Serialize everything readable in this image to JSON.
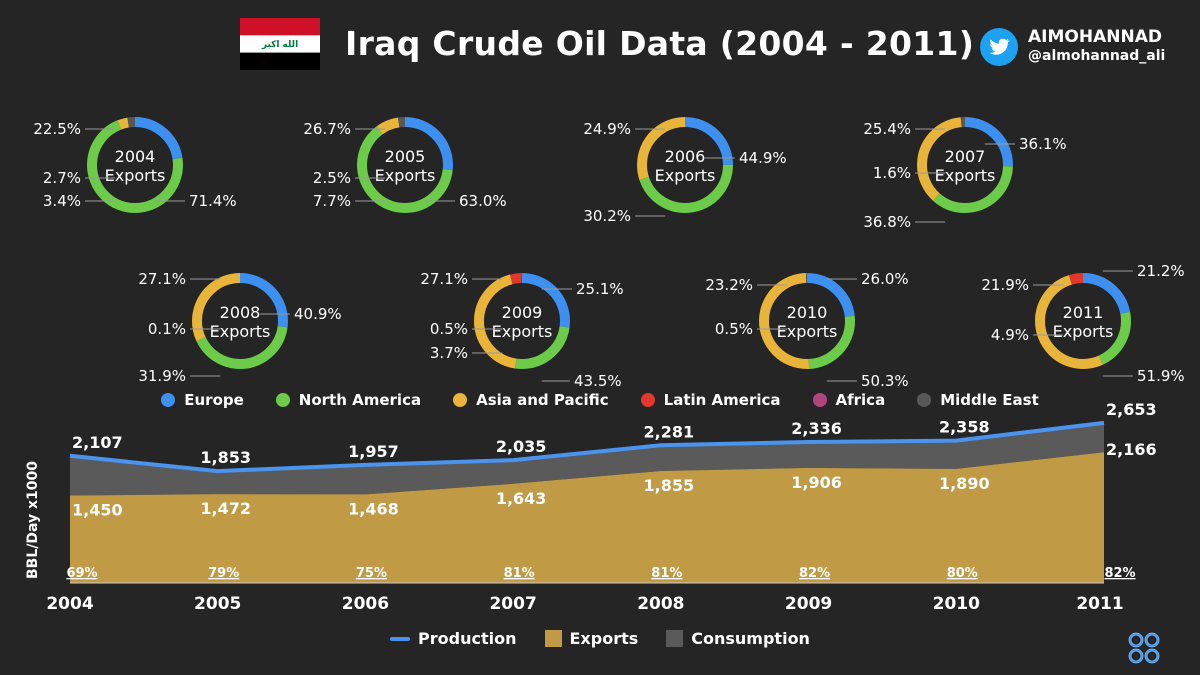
{
  "header": {
    "title": "Iraq Crude Oil Data (2004 - 2011)",
    "flag_script": "الله اكبر",
    "handle_name": "AIMOHANNAD",
    "handle_at": "@almohannad_ali"
  },
  "colors": {
    "Europe": "#3d8ff0",
    "North America": "#6ccb49",
    "Asia and Pacific": "#e9b43a",
    "Latin America": "#e2382b",
    "Africa": "#b0457e",
    "Middle East": "#585858",
    "production": "#4a94f0",
    "exports": "#c09a45",
    "consumption": "#5a5a5a"
  },
  "region_legend": [
    "Europe",
    "North America",
    "Asia and Pacific",
    "Latin America",
    "Africa",
    "Middle East"
  ],
  "chart_data": [
    {
      "type": "donut",
      "title": "Iraq crude oil exports by destination",
      "donuts": [
        {
          "label_year": "2004",
          "label_sub": "Exports",
          "segments": [
            {
              "region": "Europe",
              "value": 22.5
            },
            {
              "region": "North America",
              "value": 71.4
            },
            {
              "region": "Asia and Pacific",
              "value": 3.4
            },
            {
              "region": "Middle East",
              "value": 2.7
            }
          ],
          "labels": [
            "22.5%",
            "71.4%",
            "3.4%",
            "2.7%"
          ]
        },
        {
          "label_year": "2005",
          "label_sub": "Exports",
          "segments": [
            {
              "region": "Europe",
              "value": 26.7
            },
            {
              "region": "North America",
              "value": 63.0
            },
            {
              "region": "Asia and Pacific",
              "value": 7.7
            },
            {
              "region": "Middle East",
              "value": 2.5
            }
          ],
          "labels": [
            "26.7%",
            "63.0%",
            "7.7%",
            "2.5%"
          ]
        },
        {
          "label_year": "2006",
          "label_sub": "Exports",
          "segments": [
            {
              "region": "Europe",
              "value": 24.9
            },
            {
              "region": "North America",
              "value": 44.9
            },
            {
              "region": "Asia and Pacific",
              "value": 30.2
            }
          ],
          "labels": [
            "24.9%",
            "44.9%",
            "30.2%"
          ]
        },
        {
          "label_year": "2007",
          "label_sub": "Exports",
          "segments": [
            {
              "region": "Europe",
              "value": 25.4
            },
            {
              "region": "North America",
              "value": 36.1
            },
            {
              "region": "Asia and Pacific",
              "value": 36.8
            },
            {
              "region": "Middle East",
              "value": 1.6
            }
          ],
          "labels": [
            "25.4%",
            "36.1%",
            "36.8%",
            "1.6%"
          ]
        },
        {
          "label_year": "2008",
          "label_sub": "Exports",
          "segments": [
            {
              "region": "Europe",
              "value": 27.1
            },
            {
              "region": "North America",
              "value": 40.9
            },
            {
              "region": "Asia and Pacific",
              "value": 31.9
            },
            {
              "region": "Latin America",
              "value": 0.1
            }
          ],
          "labels": [
            "27.1%",
            "40.9%",
            "31.9%",
            "0.1%"
          ]
        },
        {
          "label_year": "2009",
          "label_sub": "Exports",
          "segments": [
            {
              "region": "Europe",
              "value": 27.1
            },
            {
              "region": "North America",
              "value": 25.1
            },
            {
              "region": "Asia and Pacific",
              "value": 43.5
            },
            {
              "region": "Latin America",
              "value": 3.7
            },
            {
              "region": "Middle East",
              "value": 0.5
            }
          ],
          "labels": [
            "27.1%",
            "25.1%",
            "43.5%",
            "3.7%",
            "0.5%"
          ]
        },
        {
          "label_year": "2010",
          "label_sub": "Exports",
          "segments": [
            {
              "region": "Europe",
              "value": 23.2
            },
            {
              "region": "North America",
              "value": 26.0
            },
            {
              "region": "Asia and Pacific",
              "value": 50.3
            },
            {
              "region": "Middle East",
              "value": 0.5
            }
          ],
          "labels": [
            "23.2%",
            "26.0%",
            "50.3%",
            "0.5%"
          ]
        },
        {
          "label_year": "2011",
          "label_sub": "Exports",
          "segments": [
            {
              "region": "Europe",
              "value": 21.9
            },
            {
              "region": "North America",
              "value": 21.2
            },
            {
              "region": "Asia and Pacific",
              "value": 51.9
            },
            {
              "region": "Latin America",
              "value": 4.9
            }
          ],
          "labels": [
            "21.9%",
            "21.2%",
            "51.9%",
            "4.9%"
          ]
        }
      ]
    },
    {
      "type": "area",
      "ylabel": "BBL/Day x1000",
      "x": [
        "2004",
        "2005",
        "2006",
        "2007",
        "2008",
        "2009",
        "2010",
        "2011"
      ],
      "ylim": [
        0,
        2700
      ],
      "series": [
        {
          "name": "Production",
          "kind": "line",
          "values": [
            2107,
            1853,
            1957,
            2035,
            2281,
            2336,
            2358,
            2653
          ],
          "labels": [
            "2,107",
            "1,853",
            "1,957",
            "2,035",
            "2,281",
            "2,336",
            "2,358",
            "2,653"
          ]
        },
        {
          "name": "Exports",
          "kind": "area",
          "values": [
            1450,
            1472,
            1468,
            1643,
            1855,
            1906,
            1890,
            2166
          ],
          "labels": [
            "1,450",
            "1,472",
            "1,468",
            "1,643",
            "1,855",
            "1,906",
            "1,890",
            "2,166"
          ]
        },
        {
          "name": "Consumption",
          "kind": "area-gap"
        }
      ],
      "export_share": [
        "69%",
        "79%",
        "75%",
        "81%",
        "81%",
        "82%",
        "80%",
        "82%"
      ],
      "legend": [
        "Production",
        "Exports",
        "Consumption"
      ]
    }
  ]
}
